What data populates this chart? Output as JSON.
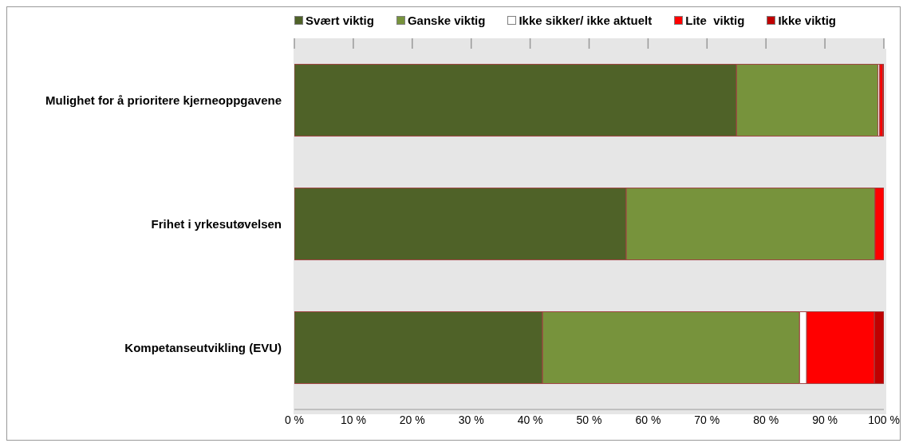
{
  "chart_data": {
    "type": "bar",
    "orientation": "horizontal",
    "stacked": true,
    "categories": [
      "Mulighet for å prioritere kjerneoppgavene",
      "Frihet i yrkesutøvelsen",
      "Kompetanseutvikling (EVU)"
    ],
    "series": [
      {
        "name": "Svært viktig",
        "color": "#4f6228",
        "values": [
          75,
          56.3,
          42.1
        ]
      },
      {
        "name": "Ganske viktig",
        "color": "#77933c",
        "values": [
          24,
          42.2,
          43.6
        ]
      },
      {
        "name": "Ikke sikker/ ikke aktuelt",
        "color": "#ffffff",
        "values": [
          0.3,
          0,
          1.2
        ]
      },
      {
        "name": "Lite  viktig",
        "color": "#ff0000",
        "values": [
          0.5,
          1.5,
          11.5
        ]
      },
      {
        "name": "Ikke viktig",
        "color": "#c00000",
        "values": [
          0.2,
          0,
          1.6
        ]
      }
    ],
    "xlim": [
      0,
      100
    ],
    "xticks": [
      {
        "value": 0,
        "label": "0 %"
      },
      {
        "value": 10,
        "label": "10 %"
      },
      {
        "value": 20,
        "label": "20 %"
      },
      {
        "value": 30,
        "label": "30 %"
      },
      {
        "value": 40,
        "label": "40 %"
      },
      {
        "value": 50,
        "label": "50 %"
      },
      {
        "value": 60,
        "label": "60 %"
      },
      {
        "value": 70,
        "label": "70 %"
      },
      {
        "value": 80,
        "label": "80 %"
      },
      {
        "value": 90,
        "label": "90 %"
      },
      {
        "value": 100,
        "label": "100 %"
      }
    ],
    "grid": "x",
    "legend": "top"
  }
}
